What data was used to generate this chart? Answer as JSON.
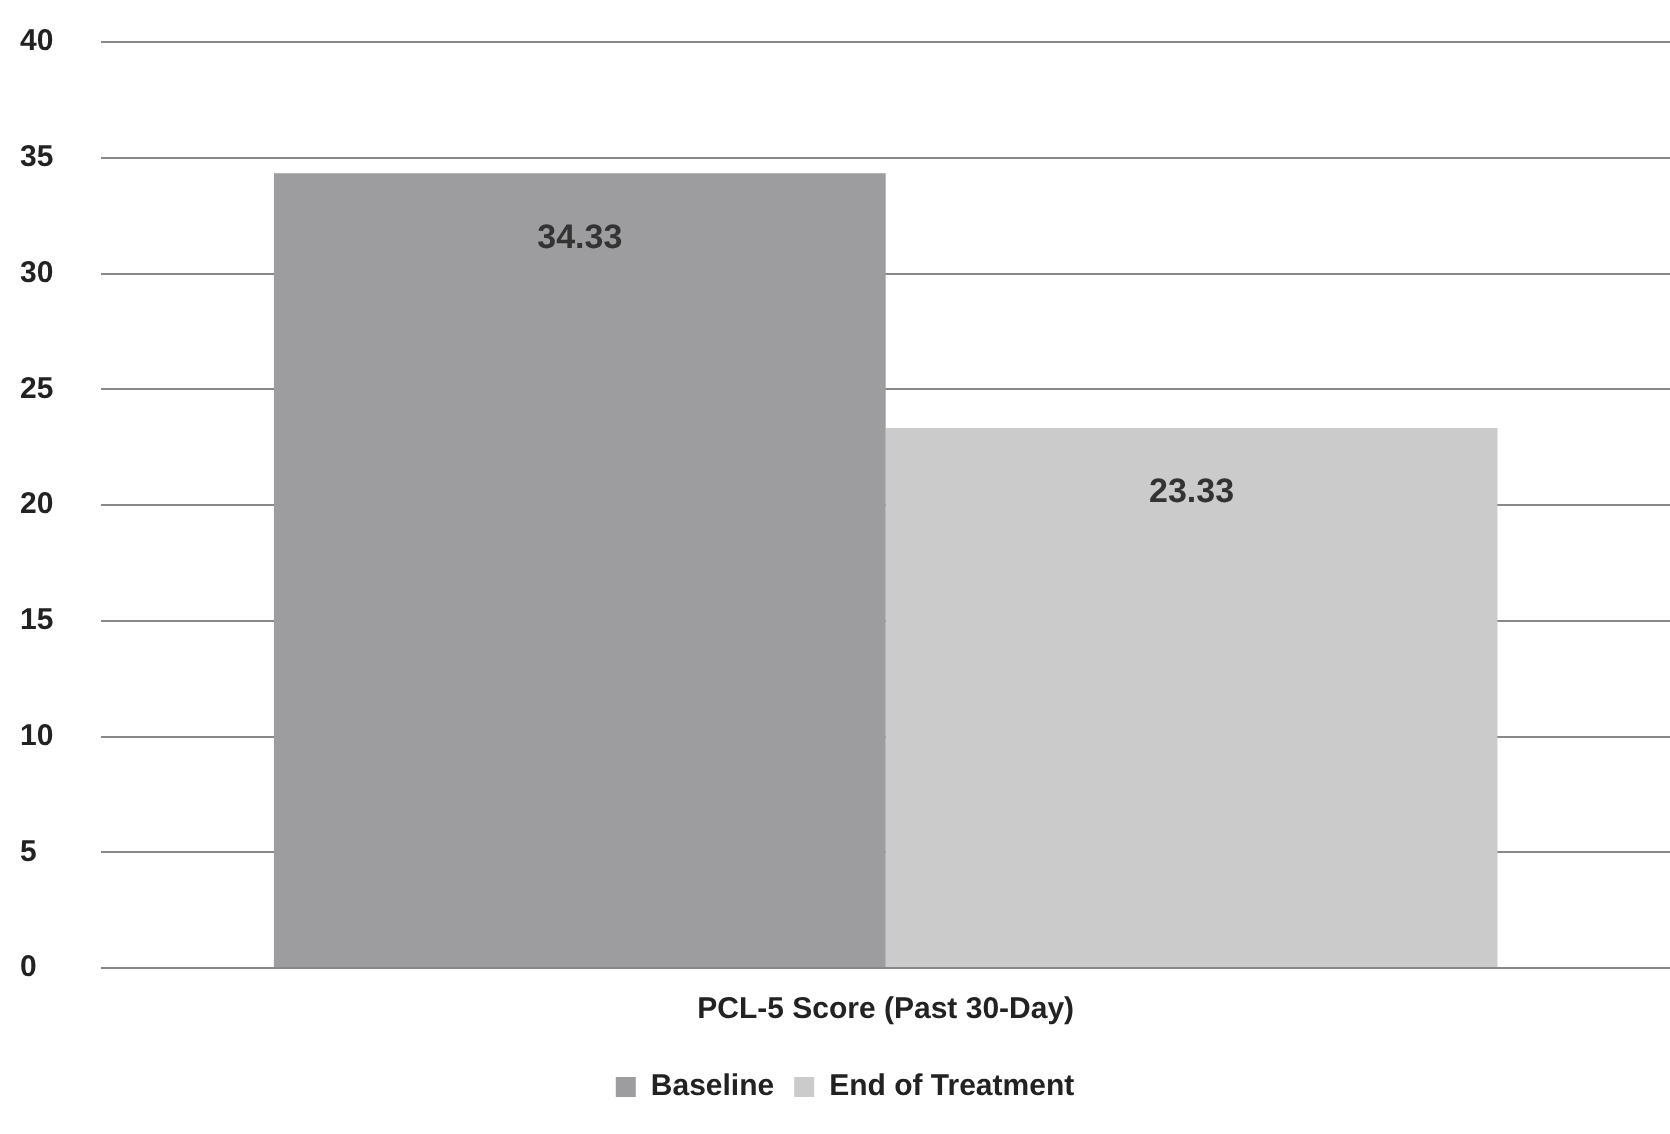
{
  "chart_data": {
    "type": "bar",
    "categories": [
      "PCL-5 Score (Past 30-Day)"
    ],
    "series": [
      {
        "name": "Baseline",
        "color": "#9d9d9f",
        "values": [
          34.33
        ]
      },
      {
        "name": "End of Treatment",
        "color": "#cbcbcb",
        "values": [
          23.33
        ]
      }
    ],
    "ylim": [
      0,
      40
    ],
    "yticks": [
      0,
      5,
      10,
      15,
      20,
      25,
      30,
      35,
      40
    ],
    "grid": "y",
    "legend": "bottom",
    "data_labels": true
  }
}
